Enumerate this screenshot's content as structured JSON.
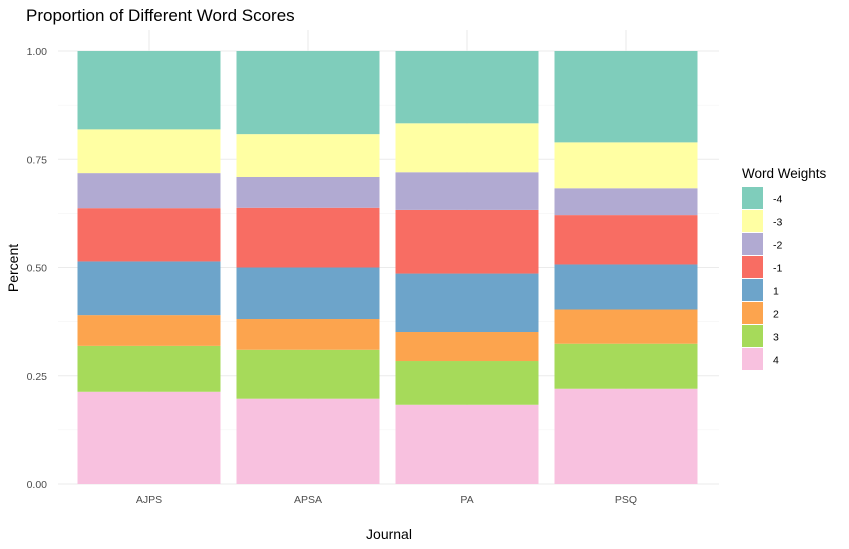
{
  "chart_data": {
    "type": "bar",
    "stacked": true,
    "title": "Proportion of Different Word Scores",
    "xlabel": "Journal",
    "ylabel": "Percent",
    "ylim": [
      0,
      1
    ],
    "yticks": [
      "0.00",
      "0.25",
      "0.50",
      "0.75",
      "1.00"
    ],
    "ytick_values": [
      0,
      0.25,
      0.5,
      0.75,
      1.0
    ],
    "grid": true,
    "categories": [
      "AJPS",
      "APSA",
      "PA",
      "PSQ"
    ],
    "legend": {
      "title": "Word Weights",
      "placement": "right"
    },
    "series": [
      {
        "name": "-4",
        "color": "#7FCDBB",
        "values": [
          0.181,
          0.192,
          0.167,
          0.211
        ]
      },
      {
        "name": "-3",
        "color": "#FFFFA3",
        "values": [
          0.101,
          0.099,
          0.113,
          0.106
        ]
      },
      {
        "name": "-2",
        "color": "#B1AAD2",
        "values": [
          0.081,
          0.071,
          0.087,
          0.062
        ]
      },
      {
        "name": "-1",
        "color": "#F86D63",
        "values": [
          0.123,
          0.138,
          0.147,
          0.114
        ]
      },
      {
        "name": "1",
        "color": "#6DA4CA",
        "values": [
          0.124,
          0.119,
          0.135,
          0.104
        ]
      },
      {
        "name": "2",
        "color": "#FCA44E",
        "values": [
          0.071,
          0.071,
          0.067,
          0.079
        ]
      },
      {
        "name": "3",
        "color": "#A6DA5A",
        "values": [
          0.106,
          0.113,
          0.101,
          0.104
        ]
      },
      {
        "name": "4",
        "color": "#F8C1DF",
        "values": [
          0.213,
          0.197,
          0.183,
          0.22
        ]
      }
    ]
  }
}
